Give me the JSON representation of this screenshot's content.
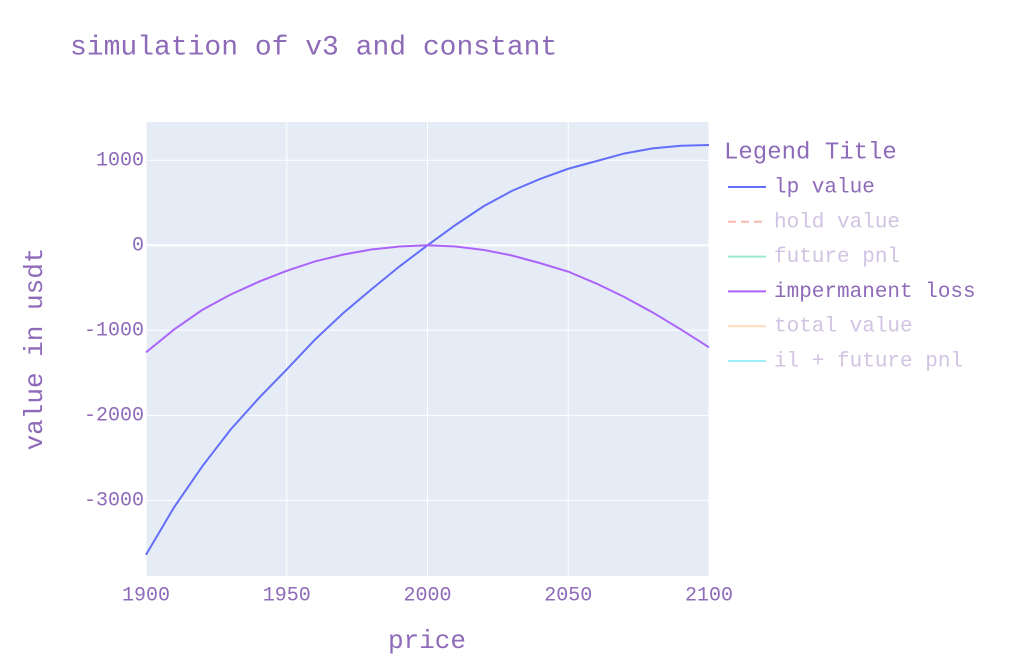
{
  "chart_data": {
    "type": "line",
    "title": "simulation of v3 and constant",
    "xlabel": "price",
    "ylabel": "value in usdt",
    "legend_title": "Legend Title",
    "x": [
      1900,
      1910,
      1920,
      1930,
      1940,
      1950,
      1960,
      1970,
      1980,
      1990,
      2000,
      2010,
      2020,
      2030,
      2040,
      2050,
      2060,
      2070,
      2080,
      2090,
      2100
    ],
    "series": [
      {
        "name": "lp value",
        "color": "#636efa",
        "values": [
          -3640,
          -3080,
          -2600,
          -2170,
          -1800,
          -1460,
          -1110,
          -800,
          -520,
          -250,
          0,
          240,
          460,
          640,
          780,
          900,
          990,
          1080,
          1140,
          1170,
          1180
        ]
      },
      {
        "name": "hold value",
        "color": "#EF553B",
        "dash": true,
        "visible": "legendonly"
      },
      {
        "name": "future pnl",
        "color": "#00cc96",
        "visible": "legendonly"
      },
      {
        "name": "impermanent loss",
        "color": "#ab63fa",
        "values": [
          -1260,
          -990,
          -760,
          -580,
          -430,
          -300,
          -190,
          -110,
          -50,
          -15,
          0,
          -15,
          -55,
          -120,
          -210,
          -310,
          -450,
          -610,
          -790,
          -990,
          -1200
        ]
      },
      {
        "name": "total value",
        "color": "#FFA15A",
        "visible": "legendonly"
      },
      {
        "name": "il + future pnl",
        "color": "#19d3f3",
        "visible": "legendonly"
      }
    ],
    "xlim": [
      1900,
      2100
    ],
    "xticks": [
      1900,
      1950,
      2000,
      2050,
      2100
    ],
    "ylim": [
      -3890,
      1450
    ],
    "yticks": [
      -3000,
      -2000,
      -1000,
      0,
      1000
    ],
    "grid": true,
    "legend": "right"
  }
}
